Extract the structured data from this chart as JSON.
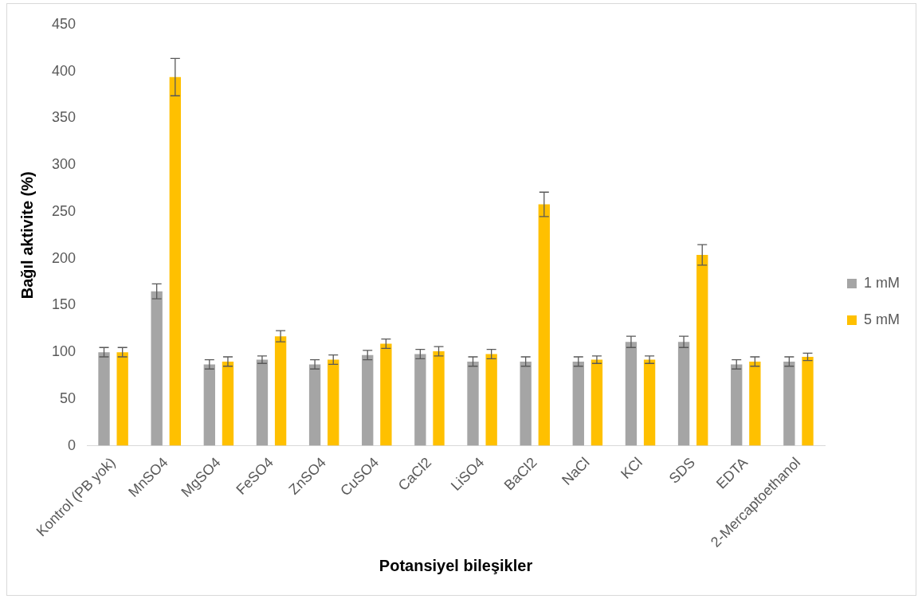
{
  "chart_data": {
    "type": "bar",
    "xlabel": "Potansiyel bileşikler",
    "ylabel": "Bağıl aktivite (%)",
    "categories": [
      "Kontrol (PB yok)",
      "MnSO4",
      "MgSO4",
      "FeSO4",
      "ZnSO4",
      "CuSO4",
      "CaCl2",
      "LiSO4",
      "BaCl2",
      "NaCl",
      "KCl",
      "SDS",
      "EDTA",
      "2-Mercaptoethanol"
    ],
    "series": [
      {
        "name": "1 mM",
        "color": "#a5a5a5",
        "values": [
          100,
          165,
          87,
          92,
          87,
          97,
          98,
          90,
          90,
          90,
          111,
          111,
          87,
          90
        ],
        "errors": [
          5,
          8,
          5,
          4,
          5,
          5,
          5,
          5,
          5,
          5,
          6,
          6,
          5,
          5
        ]
      },
      {
        "name": "5 mM",
        "color": "#ffc000",
        "values": [
          100,
          394,
          90,
          117,
          92,
          109,
          101,
          98,
          258,
          92,
          92,
          204,
          90,
          95
        ],
        "errors": [
          5,
          20,
          5,
          6,
          5,
          5,
          5,
          5,
          13,
          4,
          4,
          11,
          5,
          4
        ]
      }
    ],
    "ylim": [
      0,
      450
    ],
    "yticks": [
      0,
      50,
      100,
      150,
      200,
      250,
      300,
      350,
      400,
      450
    ],
    "grid": false,
    "legend": "right"
  }
}
